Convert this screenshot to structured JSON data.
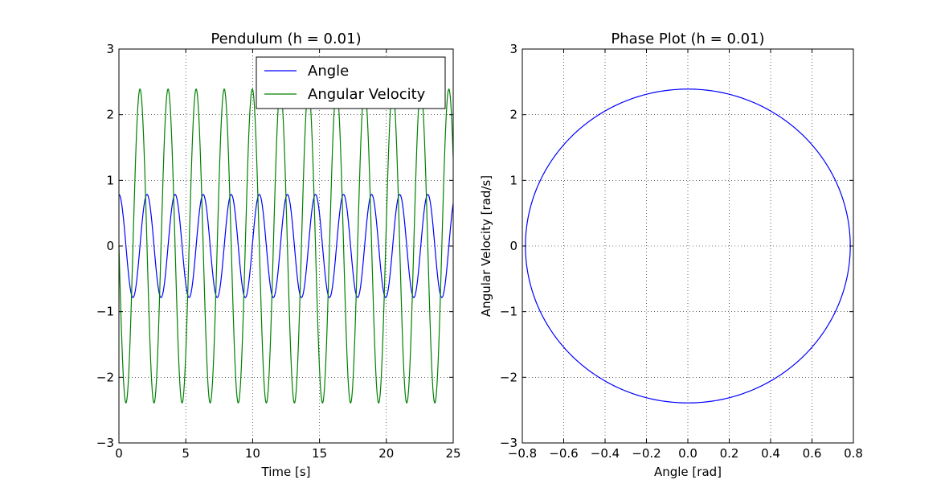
{
  "chart_data": [
    {
      "type": "line",
      "title": "Pendulum (h = 0.01)",
      "xlabel": "Time [s]",
      "ylabel": "",
      "xlim": [
        0,
        25
      ],
      "ylim": [
        -3,
        3
      ],
      "xticks": [
        0,
        5,
        10,
        15,
        20,
        25
      ],
      "xtick_labels": [
        "0",
        "5",
        "10",
        "15",
        "20",
        "25"
      ],
      "yticks": [
        -3,
        -2,
        -1,
        0,
        1,
        2,
        3
      ],
      "ytick_labels": [
        "−3",
        "−2",
        "−1",
        "0",
        "1",
        "2",
        "3"
      ],
      "grid": true,
      "legend_position": "top-right",
      "series": [
        {
          "name": "Angle",
          "color": "#0000ff",
          "function": "amplitude * cos(2*pi*t/period)",
          "amplitude": 0.785,
          "period": 2.1,
          "t_range": [
            0,
            25
          ]
        },
        {
          "name": "Angular Velocity",
          "color": "#008000",
          "function": "-amplitude * sin(2*pi*t/period)",
          "amplitude": 2.39,
          "period": 2.1,
          "t_range": [
            0,
            25
          ]
        }
      ]
    },
    {
      "type": "line",
      "title": "Phase Plot (h = 0.01)",
      "xlabel": "Angle [rad]",
      "ylabel": "Angular Velocity [rad/s]",
      "xlim": [
        -0.8,
        0.8
      ],
      "ylim": [
        -3,
        3
      ],
      "xticks": [
        -0.8,
        -0.6,
        -0.4,
        -0.2,
        0.0,
        0.2,
        0.4,
        0.6,
        0.8
      ],
      "xtick_labels": [
        "−0.8",
        "−0.6",
        "−0.4",
        "−0.2",
        "0.0",
        "0.2",
        "0.4",
        "0.6",
        "0.8"
      ],
      "yticks": [
        -3,
        -2,
        -1,
        0,
        1,
        2,
        3
      ],
      "ytick_labels": [
        "−3",
        "−2",
        "−1",
        "0",
        "1",
        "2",
        "3"
      ],
      "grid": true,
      "series": [
        {
          "color": "#0000ff",
          "shape": "closed orbit",
          "angle_amplitude": 0.785,
          "velocity_amplitude": 2.39
        }
      ]
    }
  ]
}
